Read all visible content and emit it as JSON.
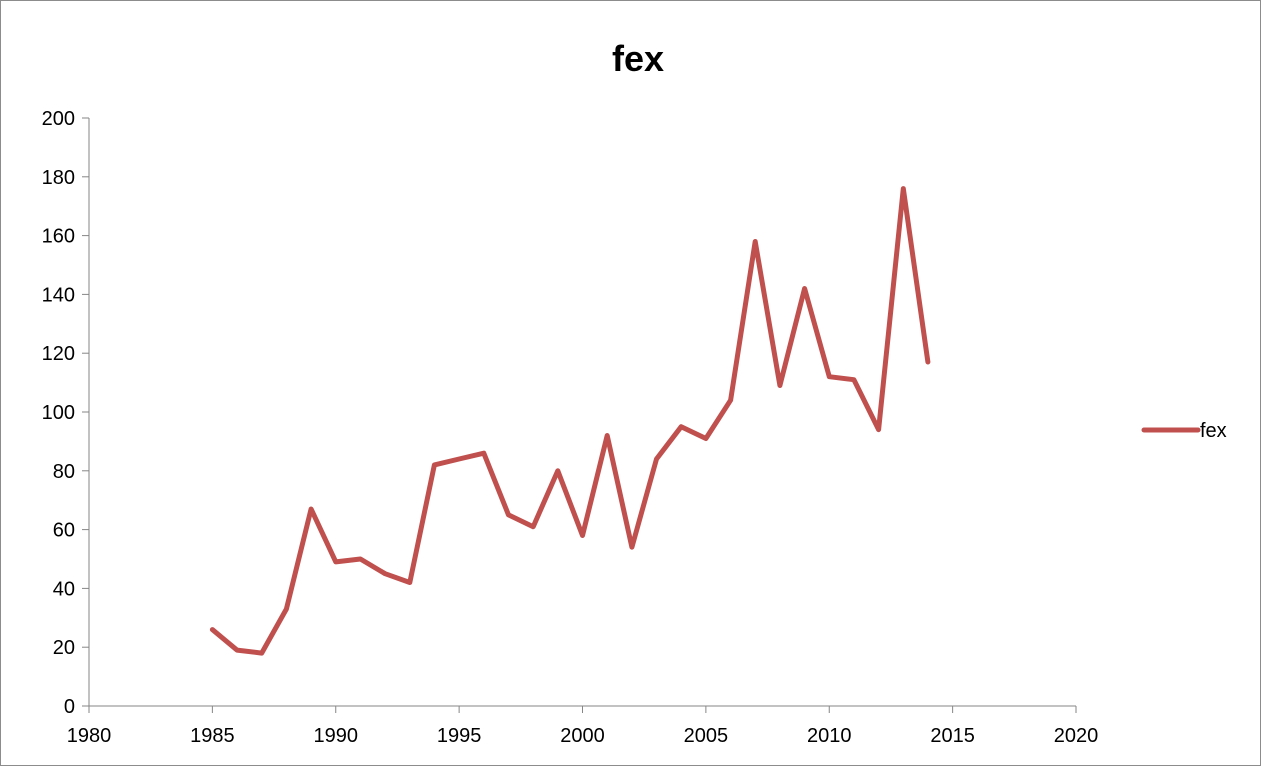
{
  "chart_data": {
    "type": "scatter",
    "title": "fex",
    "xlabel": "",
    "ylabel": "",
    "xlim": [
      1980,
      2020
    ],
    "ylim": [
      0,
      200
    ],
    "x_ticks": [
      1980,
      1985,
      1990,
      1995,
      2000,
      2005,
      2010,
      2015,
      2020
    ],
    "y_ticks": [
      0,
      20,
      40,
      60,
      80,
      100,
      120,
      140,
      160,
      180,
      200
    ],
    "grid": false,
    "legend_position": "right",
    "series": [
      {
        "name": "fex",
        "color": "#c0504d",
        "line": true,
        "markers": false,
        "x": [
          1985,
          1986,
          1987,
          1988,
          1989,
          1990,
          1991,
          1992,
          1993,
          1994,
          1995,
          1996,
          1997,
          1998,
          1999,
          2000,
          2001,
          2002,
          2003,
          2004,
          2005,
          2006,
          2007,
          2008,
          2009,
          2010,
          2011,
          2012,
          2013,
          2014
        ],
        "y": [
          26,
          19,
          18,
          33,
          67,
          49,
          50,
          45,
          42,
          82,
          84,
          86,
          65,
          61,
          80,
          58,
          92,
          54,
          84,
          95,
          91,
          104,
          158,
          109,
          142,
          112,
          111,
          94,
          176,
          117
        ]
      }
    ]
  }
}
